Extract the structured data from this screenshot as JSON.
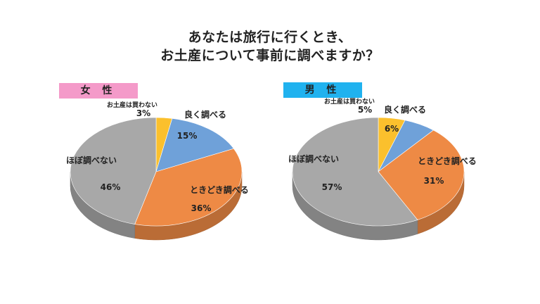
{
  "title_line1": "あなたは旅行に行くとき、",
  "title_line2": "お土産について事前に調べますか？",
  "chart_data": [
    {
      "type": "pie",
      "group": "女 性",
      "badge_color": "#f49ac9",
      "slices": [
        {
          "label": "お土産は買わない",
          "value": 3,
          "color": "#fbc02d"
        },
        {
          "label": "良く調べる",
          "value": 15,
          "color": "#6fa1d9"
        },
        {
          "label": "ときどき調べる",
          "value": 36,
          "color": "#ee8a45"
        },
        {
          "label": "ほぼ調べない",
          "value": 46,
          "color": "#a8a8a8"
        }
      ]
    },
    {
      "type": "pie",
      "group": "男 性",
      "badge_color": "#20b2ef",
      "slices": [
        {
          "label": "お土産は買わない",
          "value": 5,
          "color": "#fbc02d"
        },
        {
          "label": "良く調べる",
          "value": 6,
          "color": "#6fa1d9"
        },
        {
          "label": "ときどき調べる",
          "value": 31,
          "color": "#ee8a45"
        },
        {
          "label": "ほぼ調べない",
          "value": 57,
          "color": "#a8a8a8"
        }
      ]
    }
  ]
}
